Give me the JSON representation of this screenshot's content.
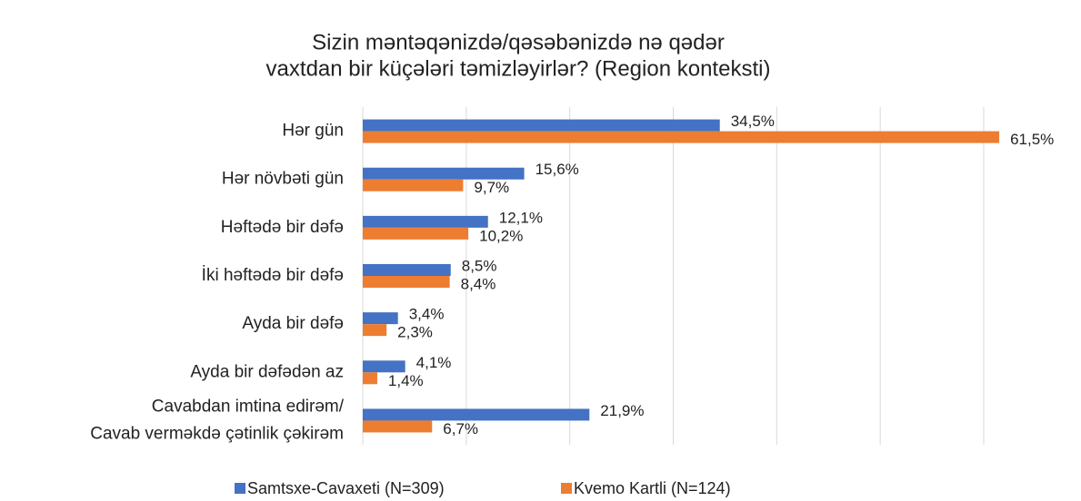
{
  "chart_data": {
    "type": "hbar",
    "title": [
      "Sizin məntəqənizdə/qəsəbənizdə nə qədər",
      "vaxtdan bir küçələri təmizləyirlər? (Region konteksti)"
    ],
    "categories": [
      [
        "Hər gün"
      ],
      [
        "Hər növbəti gün"
      ],
      [
        "Həftədə bir dəfə"
      ],
      [
        "İki həftədə bir dəfə"
      ],
      [
        "Ayda bir dəfə"
      ],
      [
        "Ayda bir dəfədən az"
      ],
      [
        "Cavabdan imtina edirəm/",
        "Cavab verməkdə çətinlik çəkirəm"
      ]
    ],
    "series": [
      {
        "name": "Samtsxe-Cavaxeti (N=309)",
        "color": "#4472c4",
        "values": [
          34.5,
          15.6,
          12.1,
          8.5,
          3.4,
          4.1,
          21.9
        ],
        "value_labels": [
          "34,5%",
          "15,6%",
          "12,1%",
          "8,5%",
          "3,4%",
          "4,1%",
          "21,9%"
        ]
      },
      {
        "name": "Kvemo Kartli (N=124)",
        "color": "#ed7d31",
        "values": [
          61.5,
          9.7,
          10.2,
          8.4,
          2.3,
          1.4,
          6.7
        ],
        "value_labels": [
          "61,5%",
          "9,7%",
          "10,2%",
          "8,4%",
          "2,3%",
          "1,4%",
          "6,7%"
        ]
      }
    ],
    "xlim": [
      0,
      60
    ],
    "xticks": [
      0,
      10,
      20,
      30,
      40,
      50,
      60
    ],
    "grid": true,
    "legend": "bottom"
  }
}
